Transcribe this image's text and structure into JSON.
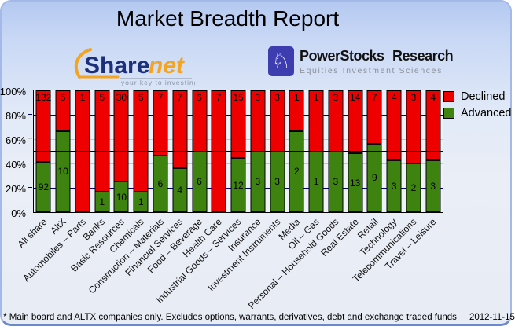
{
  "header": {
    "title": "Market Breadth Report"
  },
  "logos": {
    "sharenet": {
      "name": "Sharenet",
      "part1": "Share",
      "part2": "net",
      "tagline": "your key to investing",
      "navy": "#1c2f7d",
      "orange": "#f5a41f"
    },
    "powerstocks": {
      "name": "PowerStocks  Research",
      "tagline": "Equities Investment Sciences",
      "icon": "chess-knight",
      "blue": "#3d3db0"
    }
  },
  "chart_data": {
    "type": "bar",
    "stacked": "percent",
    "title": "Market Breadth Report",
    "categories": [
      "All share",
      "AltX",
      "Automobiles – Parts",
      "Banks",
      "Basic Resources",
      "Chemicals",
      "Construction – Materials",
      "Financial Services",
      "Food – Beverage",
      "Health Care",
      "Industrial Goods – Services",
      "Insurance",
      "Investment Instruments",
      "Media",
      "Oil – Gas",
      "Personal – Household Goods",
      "Real Estate",
      "Retail",
      "Technology",
      "Telecommunications",
      "Travel – Leisure"
    ],
    "series": [
      {
        "name": "Declined",
        "color": "#ee0000",
        "values": [
          132,
          5,
          1,
          5,
          30,
          5,
          7,
          7,
          6,
          7,
          15,
          3,
          3,
          1,
          1,
          3,
          14,
          7,
          4,
          3,
          4
        ]
      },
      {
        "name": "Advanced",
        "color": "#3e8210",
        "values": [
          92,
          10,
          0,
          1,
          10,
          1,
          6,
          4,
          6,
          0,
          12,
          3,
          3,
          2,
          1,
          3,
          13,
          9,
          3,
          2,
          3
        ]
      }
    ],
    "y_axis": {
      "ticks_top_down": [
        "100%",
        "80%",
        "60%",
        "40%",
        "20%",
        "0%"
      ],
      "range": [
        0,
        100
      ]
    },
    "grid_levels": [
      {
        "level": 80,
        "color": "#000080"
      },
      {
        "level": 60,
        "color": "#c6c6c6"
      },
      {
        "level": 40,
        "color": "#c6c6c6"
      },
      {
        "level": 20,
        "color": "#000080"
      }
    ],
    "reference_line_pct": 50,
    "legend": [
      {
        "label": "Declined",
        "color": "#ee0000"
      },
      {
        "label": "Advanced",
        "color": "#3e8210"
      }
    ],
    "legend_position": "top-right"
  },
  "footer": {
    "note": "* Main board and ALTX companies only. Excludes options, warrants, derivatives, debt and exchange traded funds",
    "date": "2012-11-15"
  }
}
